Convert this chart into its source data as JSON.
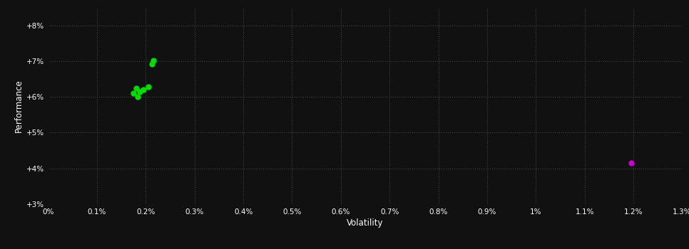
{
  "xlabel": "Volatility",
  "ylabel": "Performance",
  "background_color": "#111111",
  "grid_color": "#444444",
  "text_color": "#ffffff",
  "xlim": [
    0.0,
    0.013
  ],
  "ylim": [
    0.03,
    0.085
  ],
  "xticks": [
    0.0,
    0.001,
    0.002,
    0.003,
    0.004,
    0.005,
    0.006,
    0.007,
    0.008,
    0.009,
    0.01,
    0.011,
    0.012,
    0.013
  ],
  "xtick_labels": [
    "0%",
    "0.1%",
    "0.2%",
    "0.3%",
    "0.4%",
    "0.5%",
    "0.6%",
    "0.7%",
    "0.8%",
    "0.9%",
    "1%",
    "1.1%",
    "1.2%",
    "1.3%"
  ],
  "yticks": [
    0.03,
    0.04,
    0.05,
    0.06,
    0.07,
    0.08
  ],
  "ytick_labels": [
    "+3%",
    "+4%",
    "+5%",
    "+6%",
    "+7%",
    "+8%"
  ],
  "green_points": [
    [
      0.00175,
      0.061
    ],
    [
      0.0018,
      0.0625
    ],
    [
      0.00183,
      0.06
    ],
    [
      0.00188,
      0.0615
    ],
    [
      0.00195,
      0.062
    ],
    [
      0.00205,
      0.0628
    ],
    [
      0.00212,
      0.0692
    ],
    [
      0.00215,
      0.0702
    ]
  ],
  "magenta_points": [
    [
      0.01195,
      0.0415
    ]
  ],
  "green_color": "#00dd00",
  "magenta_color": "#cc00cc",
  "point_size": 25
}
